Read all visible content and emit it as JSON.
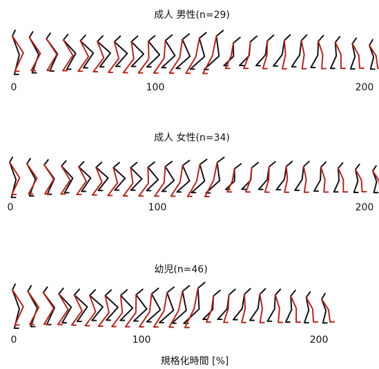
{
  "panels": [
    {
      "title": "成人 男性(n=29)",
      "ticks": [
        "0",
        "100",
        "200"
      ]
    },
    {
      "title": "成人 女性(n=34)",
      "ticks": [
        "0",
        "100",
        "200"
      ]
    },
    {
      "title": "幼児(n=46)",
      "ticks": [
        "0",
        "100",
        "200"
      ]
    }
  ],
  "x_label": "規格化時間 [%]"
}
